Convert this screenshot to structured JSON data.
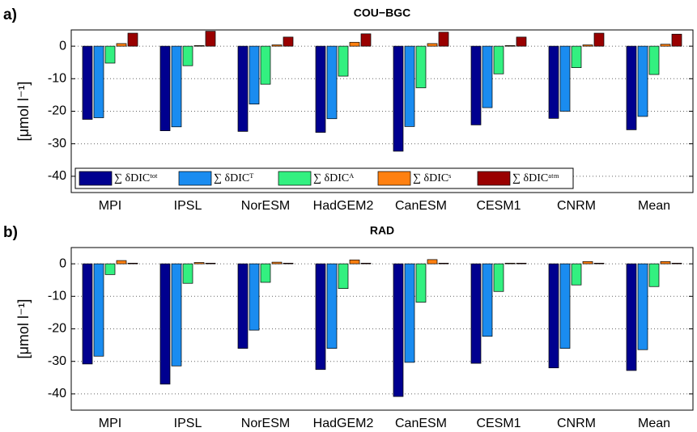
{
  "chart_data": [
    {
      "type": "bar",
      "panel_label": "a)",
      "title": "COU−BGC",
      "y_label": "[μmol l⁻¹]",
      "categories": [
        "MPI",
        "IPSL",
        "NorESM",
        "HadGEM2",
        "CanESM",
        "CESM1",
        "CNRM",
        "Mean"
      ],
      "ylim": [
        -45,
        5
      ],
      "yticks": [
        -40,
        -30,
        -20,
        -10,
        0
      ],
      "grid": true,
      "legend": "lower left",
      "series": [
        {
          "name": "∑ δDICᵗᵒᵗ",
          "color": "#00008f",
          "values": [
            -22.5,
            -26,
            -26.2,
            -26.5,
            -32.3,
            -24.2,
            -22.2,
            -25.7
          ]
        },
        {
          "name": "∑ δDICᵀ",
          "color": "#1a8cf0",
          "values": [
            -22,
            -24.8,
            -17.8,
            -22.3,
            -24.7,
            -18.9,
            -20,
            -21.6
          ]
        },
        {
          "name": "∑ δDICᴬ",
          "color": "#33f080",
          "values": [
            -5.2,
            -6,
            -11.7,
            -9.2,
            -12.8,
            -8.5,
            -6.6,
            -8.7
          ]
        },
        {
          "name": "∑ δDICˢ",
          "color": "#ff8010",
          "values": [
            0.8,
            0.2,
            0.4,
            1.2,
            0.8,
            0.2,
            0.4,
            0.6
          ]
        },
        {
          "name": "∑ δDICᵃᵗᵐ",
          "color": "#990000",
          "values": [
            4,
            4.6,
            2.8,
            3.8,
            4.3,
            2.8,
            4,
            3.7
          ]
        }
      ]
    },
    {
      "type": "bar",
      "panel_label": "b)",
      "title": "RAD",
      "y_label": "[μmol l⁻¹]",
      "categories": [
        "MPI",
        "IPSL",
        "NorESM",
        "HadGEM2",
        "CanESM",
        "CESM1",
        "CNRM",
        "Mean"
      ],
      "ylim": [
        -45,
        5
      ],
      "yticks": [
        -40,
        -30,
        -20,
        -10,
        0
      ],
      "grid": true,
      "series": [
        {
          "color": "#00008f",
          "values": [
            -30.8,
            -37,
            -26,
            -32.5,
            -40.8,
            -30.6,
            -32,
            -32.8
          ]
        },
        {
          "color": "#1a8cf0",
          "values": [
            -28.4,
            -31.4,
            -20.4,
            -26,
            -30.3,
            -22.3,
            -26,
            -26.4
          ]
        },
        {
          "color": "#33f080",
          "values": [
            -3.3,
            -6,
            -5.7,
            -7.6,
            -11.8,
            -8.5,
            -6.5,
            -7
          ]
        },
        {
          "color": "#ff8010",
          "values": [
            1,
            0.4,
            0.5,
            1.2,
            1.3,
            0.2,
            0.7,
            0.7
          ]
        },
        {
          "color": "#990000",
          "values": [
            0.2,
            0.2,
            0.2,
            0.2,
            0.2,
            0.2,
            0.2,
            0.2
          ]
        }
      ]
    }
  ]
}
